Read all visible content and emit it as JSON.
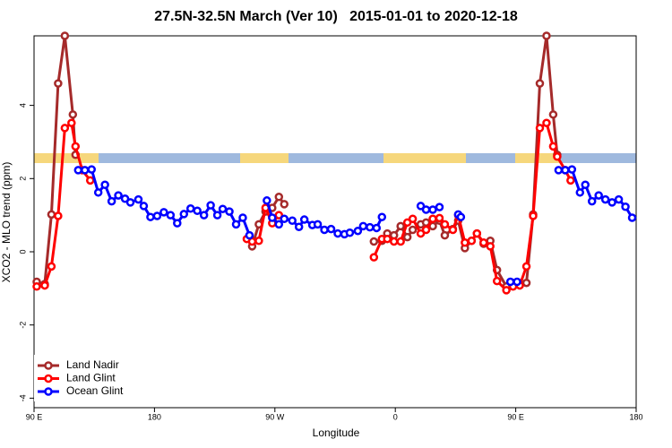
{
  "chart_data": {
    "type": "line",
    "title": "27.5N-32.5N March (Ver 10)   2015-01-01 to 2020-12-18",
    "x_label": "Longitude",
    "y_label": "XCO2 - MLO trend (ppm)",
    "xlim": [
      90,
      540
    ],
    "ylim": [
      -4.26,
      5.9
    ],
    "xticks": [
      {
        "value": 90,
        "label": "90 E"
      },
      {
        "value": 180,
        "label": "180"
      },
      {
        "value": 270,
        "label": "90 W"
      },
      {
        "value": 360,
        "label": "0"
      },
      {
        "value": 450,
        "label": "90 E"
      },
      {
        "value": 540,
        "label": "180"
      }
    ],
    "yticks": [
      -4,
      -2,
      0,
      2,
      4
    ],
    "legend": "bottom-left",
    "series": [
      {
        "name": "Land Nadir",
        "color": "#a52a2a",
        "x": [
          92,
          98,
          103,
          108,
          113,
          119,
          121,
          200,
          251,
          253,
          258,
          263,
          268,
          273,
          277,
          300,
          344,
          350,
          354,
          359,
          364,
          369,
          373,
          379,
          383,
          388,
          393,
          397,
          403,
          407,
          412,
          417,
          421,
          426,
          431,
          436,
          443,
          448,
          453,
          458,
          463,
          468,
          473,
          478,
          481
        ],
        "values": [
          -0.82,
          -0.88,
          1.02,
          4.6,
          5.9,
          3.75,
          2.65,
          null,
          0.4,
          0.15,
          0.75,
          1.1,
          1.2,
          1.5,
          1.3,
          null,
          0.28,
          0.3,
          0.5,
          0.45,
          0.7,
          0.4,
          0.6,
          0.75,
          0.8,
          0.7,
          0.85,
          0.45,
          0.62,
          0.85,
          0.1,
          0.3,
          0.5,
          0.22,
          0.3,
          -0.5,
          -0.95,
          -0.85,
          -0.9,
          -0.85,
          1.02,
          4.6,
          5.9,
          3.75,
          2.65
        ]
      },
      {
        "name": "Land Glint",
        "color": "#ff0000",
        "x": [
          92,
          98,
          103,
          108,
          113,
          118,
          121,
          126,
          132,
          200,
          249,
          253,
          258,
          263,
          268,
          273,
          300,
          344,
          350,
          354,
          359,
          364,
          369,
          373,
          379,
          383,
          388,
          393,
          397,
          403,
          407,
          412,
          417,
          421,
          426,
          431,
          436,
          443,
          448,
          453,
          458,
          463,
          468,
          473,
          478,
          481,
          487,
          491
        ],
        "values": [
          -0.95,
          -0.92,
          -0.4,
          0.98,
          3.38,
          3.52,
          2.88,
          2.23,
          1.95,
          null,
          0.35,
          0.28,
          0.3,
          1.2,
          0.78,
          1.0,
          null,
          -0.15,
          0.35,
          0.35,
          0.28,
          0.28,
          0.8,
          0.9,
          0.5,
          0.6,
          0.9,
          0.92,
          0.75,
          0.6,
          1.0,
          0.25,
          0.3,
          0.5,
          0.25,
          0.15,
          -0.8,
          -1.05,
          -0.95,
          -0.92,
          -0.4,
          0.98,
          3.38,
          3.52,
          2.88,
          2.6,
          2.23,
          1.95
        ]
      },
      {
        "name": "Ocean Glint",
        "color": "#0000ff",
        "x": [
          123,
          128,
          133,
          138,
          143,
          148,
          153,
          158,
          162,
          168,
          172,
          177,
          182,
          187,
          192,
          197,
          202,
          207,
          212,
          217,
          222,
          227,
          231,
          236,
          241,
          246,
          251,
          258,
          264,
          268,
          273,
          277,
          283,
          288,
          292,
          298,
          302,
          307,
          312,
          317,
          322,
          326,
          332,
          336,
          341,
          346,
          350,
          365,
          379,
          383,
          388,
          393,
          400,
          407,
          409,
          430,
          446,
          451,
          470,
          482,
          487,
          492,
          498,
          502,
          507,
          512,
          517,
          522,
          527,
          532,
          537
        ],
        "values": [
          2.23,
          2.23,
          2.25,
          1.62,
          1.83,
          1.38,
          1.54,
          1.45,
          1.35,
          1.43,
          1.25,
          0.95,
          0.98,
          1.08,
          1.0,
          0.78,
          1.03,
          1.18,
          1.12,
          1.0,
          1.27,
          1.0,
          1.17,
          1.1,
          0.75,
          0.93,
          0.45,
          null,
          1.4,
          0.93,
          0.75,
          0.9,
          0.85,
          0.68,
          0.88,
          0.73,
          0.75,
          0.6,
          0.62,
          0.5,
          0.48,
          0.52,
          0.57,
          0.7,
          0.67,
          0.65,
          0.95,
          null,
          1.25,
          1.15,
          1.15,
          1.22,
          null,
          1.02,
          0.95,
          null,
          -0.82,
          -0.82,
          null,
          2.23,
          2.23,
          2.25,
          1.62,
          1.83,
          1.38,
          1.54,
          1.43,
          1.35,
          1.43,
          1.23,
          0.93
        ]
      }
    ]
  }
}
